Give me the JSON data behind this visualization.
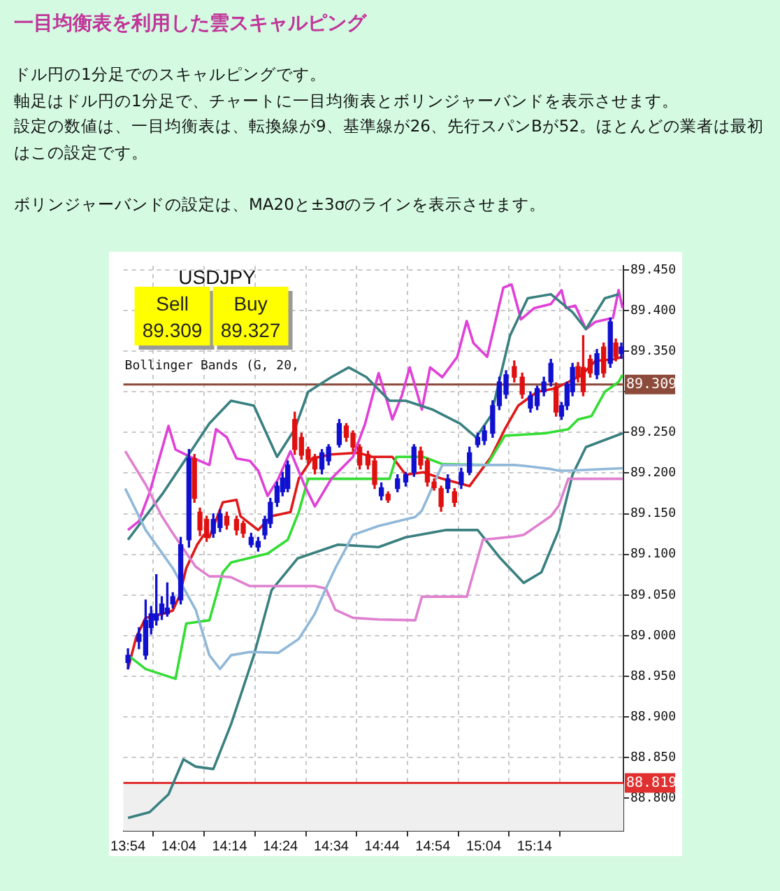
{
  "chart_data": {
    "type": "candlestick",
    "title": "一目均衡表を利用した雲スキャルピング",
    "subtitle": "ドル円の1分足でのスキャルピングです。",
    "annotations": [
      "軸足はドル円の1分足で、チャートに一目均衡表とボリンジャーバンドを表示させます。",
      "設定の数値は、一目均衡表は、転換線が9、基準線が26、先行スパンBが52。ほとんどの業者は最初はこの設定です。",
      "ボリンジャーバンドの設定は、MA20と±3σのラインを表示させます。",
      "USDJPY",
      "Sell",
      "89.309",
      "Buy",
      "89.327",
      "Bollinger Bands (G, 20,"
    ],
    "x": [
      13.9,
      13.936,
      13.958,
      13.976,
      13.993,
      14.011,
      14.029,
      14.047,
      14.073,
      14.1,
      14.118,
      14.136,
      14.158,
      14.18,
      14.202,
      14.224,
      14.256,
      14.278,
      14.304,
      14.327,
      14.349,
      14.367,
      14.389,
      14.407,
      14.424,
      14.447,
      14.469,
      14.491,
      14.513,
      14.536,
      14.558,
      14.593,
      14.616,
      14.638,
      14.66,
      14.687,
      14.709,
      14.731,
      14.753,
      14.784,
      14.811,
      14.838,
      14.86,
      14.882,
      14.904,
      14.927,
      14.949,
      14.971,
      14.993,
      15.02,
      15.047,
      15.069,
      15.096,
      15.118,
      15.14,
      15.167,
      15.193,
      15.22,
      15.242,
      15.264,
      15.287,
      15.304,
      15.322,
      15.34,
      15.358,
      15.376,
      15.393,
      15.416,
      15.438,
      15.46,
      15.482,
      15.5,
      15.518
    ],
    "ohlc": [
      [
        88.967,
        88.984,
        88.959,
        88.976
      ],
      [
        88.993,
        89.01,
        88.984,
        89.002
      ],
      [
        88.976,
        89.044,
        88.971,
        89.019
      ],
      [
        89.01,
        89.036,
        89.002,
        89.027
      ],
      [
        89.019,
        89.075,
        89.013,
        89.027
      ],
      [
        89.027,
        89.048,
        89.02,
        89.039
      ],
      [
        89.027,
        89.065,
        89.024,
        89.034
      ],
      [
        89.039,
        89.053,
        89.034,
        89.048
      ],
      [
        89.044,
        89.121,
        89.039,
        89.112
      ],
      [
        89.118,
        89.229,
        89.109,
        89.218
      ],
      [
        89.218,
        89.223,
        89.164,
        89.169
      ],
      [
        89.152,
        89.157,
        89.123,
        89.13
      ],
      [
        89.143,
        89.147,
        89.116,
        89.121
      ],
      [
        89.126,
        89.15,
        89.121,
        89.143
      ],
      [
        89.133,
        89.155,
        89.128,
        89.15
      ],
      [
        89.147,
        89.152,
        89.131,
        89.136
      ],
      [
        89.143,
        89.147,
        89.124,
        89.13
      ],
      [
        89.138,
        89.141,
        89.121,
        89.126
      ],
      [
        89.112,
        89.126,
        89.109,
        89.121
      ],
      [
        89.109,
        89.121,
        89.104,
        89.116
      ],
      [
        89.124,
        89.147,
        89.119,
        89.143
      ],
      [
        89.138,
        89.169,
        89.133,
        89.164
      ],
      [
        89.164,
        89.189,
        89.159,
        89.184
      ],
      [
        89.177,
        89.201,
        89.172,
        89.194
      ],
      [
        89.181,
        89.215,
        89.177,
        89.21
      ],
      [
        89.266,
        89.275,
        89.223,
        89.229
      ],
      [
        89.244,
        89.249,
        89.217,
        89.222
      ],
      [
        89.229,
        89.232,
        89.211,
        89.217
      ],
      [
        89.22,
        89.223,
        89.199,
        89.205
      ],
      [
        89.205,
        89.229,
        89.199,
        89.225
      ],
      [
        89.215,
        89.235,
        89.21,
        89.232
      ],
      [
        89.235,
        89.266,
        89.232,
        89.261
      ],
      [
        89.258,
        89.261,
        89.239,
        89.244
      ],
      [
        89.249,
        89.252,
        89.227,
        89.232
      ],
      [
        89.232,
        89.235,
        89.205,
        89.21
      ],
      [
        89.223,
        89.227,
        89.205,
        89.21
      ],
      [
        89.215,
        89.218,
        89.181,
        89.186
      ],
      [
        89.172,
        89.188,
        89.167,
        89.182
      ],
      [
        89.174,
        89.177,
        89.164,
        89.167
      ],
      [
        89.181,
        89.198,
        89.177,
        89.193
      ],
      [
        89.189,
        89.201,
        89.184,
        89.198
      ],
      [
        89.201,
        89.235,
        89.196,
        89.232
      ],
      [
        89.227,
        89.232,
        89.205,
        89.21
      ],
      [
        89.215,
        89.218,
        89.184,
        89.189
      ],
      [
        89.189,
        89.193,
        89.179,
        89.182
      ],
      [
        89.181,
        89.184,
        89.153,
        89.159
      ],
      [
        89.181,
        89.198,
        89.176,
        89.193
      ],
      [
        89.177,
        89.181,
        89.159,
        89.164
      ],
      [
        89.186,
        89.206,
        89.181,
        89.201
      ],
      [
        89.201,
        89.232,
        89.198,
        89.225
      ],
      [
        89.235,
        89.249,
        89.232,
        89.244
      ],
      [
        89.24,
        89.258,
        89.235,
        89.252
      ],
      [
        89.249,
        89.289,
        89.244,
        89.283
      ],
      [
        89.283,
        89.318,
        89.278,
        89.312
      ],
      [
        89.297,
        89.326,
        89.292,
        89.321
      ],
      [
        89.331,
        89.338,
        89.312,
        89.318
      ],
      [
        89.318,
        89.323,
        89.292,
        89.297
      ],
      [
        89.28,
        89.3,
        89.275,
        89.295
      ],
      [
        89.283,
        89.307,
        89.278,
        89.304
      ],
      [
        89.3,
        89.318,
        89.295,
        89.312
      ],
      [
        89.312,
        89.34,
        89.307,
        89.335
      ],
      [
        89.306,
        89.311,
        89.27,
        89.275
      ],
      [
        89.27,
        89.287,
        89.266,
        89.283
      ],
      [
        89.283,
        89.312,
        89.278,
        89.309
      ],
      [
        89.3,
        89.335,
        89.295,
        89.33
      ],
      [
        89.331,
        89.336,
        89.312,
        89.318
      ],
      [
        89.33,
        89.369,
        89.295,
        89.3
      ],
      [
        89.34,
        89.345,
        89.318,
        89.323
      ],
      [
        89.321,
        89.352,
        89.316,
        89.347
      ],
      [
        89.355,
        89.36,
        89.318,
        89.323
      ],
      [
        89.335,
        89.391,
        89.33,
        89.386
      ],
      [
        89.36,
        89.365,
        89.338,
        89.343
      ],
      [
        89.347,
        89.36,
        89.341,
        89.355
      ]
    ],
    "colors": [
      "#1010d0",
      "#1010d0",
      "#1010d0",
      "#1010d0",
      "#1010d0",
      "#1010d0",
      "#1010d0",
      "#1010d0",
      "#1010d0",
      "#1010d0",
      "#e01010",
      "#e01010",
      "#e01010",
      "#1010d0",
      "#1010d0",
      "#e01010",
      "#e01010",
      "#e01010",
      "#1010d0",
      "#1010d0",
      "#1010d0",
      "#1010d0",
      "#1010d0",
      "#1010d0",
      "#1010d0",
      "#e01010",
      "#e01010",
      "#e01010",
      "#e01010",
      "#1010d0",
      "#1010d0",
      "#1010d0",
      "#e01010",
      "#e01010",
      "#e01010",
      "#e01010",
      "#e01010",
      "#1010d0",
      "#e01010",
      "#1010d0",
      "#1010d0",
      "#1010d0",
      "#e01010",
      "#e01010",
      "#e01010",
      "#e01010",
      "#1010d0",
      "#e01010",
      "#1010d0",
      "#1010d0",
      "#1010d0",
      "#1010d0",
      "#1010d0",
      "#1010d0",
      "#1010d0",
      "#e01010",
      "#e01010",
      "#1010d0",
      "#1010d0",
      "#1010d0",
      "#1010d0",
      "#e01010",
      "#1010d0",
      "#1010d0",
      "#1010d0",
      "#e01010",
      "#e01010",
      "#e01010",
      "#1010d0",
      "#e01010",
      "#1010d0",
      "#e01010",
      "#1010d0"
    ],
    "series": [
      {
        "type": "line",
        "color": "#90b8d8",
        "x": [
          13.891,
          13.958,
          14.011,
          14.047,
          14.122,
          14.167,
          14.202,
          14.238,
          14.3,
          14.393,
          14.46,
          14.513,
          14.549,
          14.58,
          14.638,
          14.722,
          14.842,
          14.864,
          14.931,
          15.011,
          15.064,
          15.167,
          15.198,
          15.287,
          15.313,
          15.344,
          15.522
        ],
        "values": [
          89.181,
          89.13,
          89.102,
          89.083,
          89.032,
          88.976,
          88.959,
          88.976,
          88.98,
          88.979,
          88.996,
          89.027,
          89.058,
          89.083,
          89.124,
          89.135,
          89.146,
          89.154,
          89.21,
          89.21,
          89.21,
          89.21,
          89.209,
          89.205,
          89.203,
          89.203,
          89.206
        ]
      },
      {
        "type": "line",
        "color": "#e080d0",
        "x": [
          13.891,
          13.958,
          14.011,
          14.047,
          14.122,
          14.167,
          14.202,
          14.238,
          14.3,
          14.393,
          14.46,
          14.513,
          14.549,
          14.58,
          14.638,
          14.722,
          14.842,
          14.864,
          14.931,
          15.011,
          15.064,
          15.167,
          15.198,
          15.287,
          15.313,
          15.344,
          15.522
        ],
        "values": [
          89.227,
          89.186,
          89.147,
          89.126,
          89.085,
          89.073,
          89.073,
          89.072,
          89.061,
          89.061,
          89.061,
          89.061,
          89.058,
          89.032,
          89.022,
          89.02,
          89.019,
          89.048,
          89.048,
          89.048,
          89.118,
          89.122,
          89.124,
          89.147,
          89.16,
          89.193,
          89.193
        ]
      },
      {
        "type": "line",
        "color": "#3a8080",
        "x": [
          13.9,
          14.016,
          14.167,
          14.238,
          14.313,
          14.389,
          14.447,
          14.491,
          14.567,
          14.624,
          14.682,
          14.758,
          14.811,
          14.9,
          14.989,
          15.042,
          15.091,
          15.153,
          15.211,
          15.287,
          15.358,
          15.402,
          15.464,
          15.509
        ],
        "values": [
          89.118,
          89.176,
          89.261,
          89.289,
          89.283,
          89.22,
          89.254,
          89.3,
          89.318,
          89.33,
          89.318,
          89.289,
          89.289,
          89.278,
          89.261,
          89.244,
          89.271,
          89.369,
          89.415,
          89.42,
          89.398,
          89.377,
          89.415,
          89.42
        ]
      },
      {
        "type": "line",
        "color": "#3a8080",
        "x": [
          13.9,
          13.971,
          14.033,
          14.082,
          14.122,
          14.18,
          14.238,
          14.313,
          14.371,
          14.456,
          14.589,
          14.722,
          14.811,
          14.944,
          15.047,
          15.122,
          15.198,
          15.256,
          15.313,
          15.358,
          15.402,
          15.522
        ],
        "values": [
          88.776,
          88.783,
          88.805,
          88.848,
          88.839,
          88.836,
          88.891,
          88.976,
          89.056,
          89.095,
          89.112,
          89.109,
          89.121,
          89.13,
          89.13,
          89.095,
          89.065,
          89.078,
          89.13,
          89.198,
          89.232,
          89.249
        ]
      },
      {
        "type": "line",
        "color": "#e040d8",
        "x": [
          13.9,
          13.936,
          13.971,
          14.033,
          14.056,
          14.104,
          14.167,
          14.189,
          14.224,
          14.256,
          14.3,
          14.327,
          14.358,
          14.393,
          14.433,
          14.478,
          14.513,
          14.567,
          14.638,
          14.678,
          14.722,
          14.758,
          14.767,
          14.798,
          14.824,
          14.864,
          14.891,
          14.931,
          14.98,
          15.011,
          15.033,
          15.078,
          15.131,
          15.158,
          15.189,
          15.233,
          15.287,
          15.322,
          15.336,
          15.367,
          15.402,
          15.433,
          15.491,
          15.509,
          15.522
        ],
        "values": [
          89.13,
          89.141,
          89.176,
          89.258,
          89.229,
          89.22,
          89.21,
          89.254,
          89.244,
          89.218,
          89.215,
          89.203,
          89.172,
          89.193,
          89.227,
          89.186,
          89.159,
          89.193,
          89.22,
          89.261,
          89.323,
          89.278,
          89.266,
          89.295,
          89.33,
          89.278,
          89.33,
          89.318,
          89.343,
          89.387,
          89.36,
          89.343,
          89.428,
          89.432,
          89.389,
          89.403,
          89.408,
          89.425,
          89.403,
          89.406,
          89.377,
          89.386,
          89.391,
          89.425,
          89.403
        ]
      },
      {
        "type": "line",
        "color": "#33dd33",
        "x": [
          13.9,
          13.958,
          14.056,
          14.091,
          14.167,
          14.211,
          14.238,
          14.358,
          14.424,
          14.46,
          14.491,
          14.758,
          14.78,
          14.869,
          14.931,
          15.078,
          15.136,
          15.269,
          15.344,
          15.376,
          15.42,
          15.464,
          15.509,
          15.522
        ],
        "values": [
          88.976,
          88.959,
          88.947,
          89.015,
          89.019,
          89.078,
          89.09,
          89.101,
          89.118,
          89.152,
          89.193,
          89.193,
          89.22,
          89.22,
          89.211,
          89.21,
          89.246,
          89.249,
          89.254,
          89.266,
          89.27,
          89.3,
          89.312,
          89.321
        ]
      },
      {
        "type": "line",
        "color": "#e01818",
        "x": [
          13.9,
          13.927,
          13.958,
          14.016,
          14.047,
          14.069,
          14.091,
          14.127,
          14.149,
          14.167,
          14.211,
          14.256,
          14.269,
          14.327,
          14.371,
          14.433,
          14.46,
          14.504,
          14.567,
          14.656,
          14.7,
          14.767,
          14.811,
          14.869,
          14.931,
          15.02,
          15.091,
          15.136,
          15.18,
          15.242,
          15.3,
          15.344,
          15.389,
          15.433,
          15.491,
          15.522
        ],
        "values": [
          88.959,
          88.998,
          89.022,
          89.027,
          89.031,
          89.049,
          89.083,
          89.112,
          89.124,
          89.121,
          89.164,
          89.167,
          89.147,
          89.13,
          89.147,
          89.152,
          89.193,
          89.218,
          89.223,
          89.225,
          89.22,
          89.22,
          89.198,
          89.201,
          89.193,
          89.184,
          89.22,
          89.254,
          89.283,
          89.3,
          89.304,
          89.312,
          89.321,
          89.338,
          89.34,
          89.343
        ]
      }
    ],
    "xlim": [
      13.885,
      15.525
    ],
    "xticks": [
      {
        "value": 13.9,
        "label": "13:54"
      },
      {
        "value": 14.0667,
        "label": "14:04"
      },
      {
        "value": 14.2333,
        "label": "14:14"
      },
      {
        "value": 14.4,
        "label": "14:24"
      },
      {
        "value": 14.5667,
        "label": "14:34"
      },
      {
        "value": 14.7333,
        "label": "14:44"
      },
      {
        "value": 14.9,
        "label": "14:54"
      },
      {
        "value": 15.0667,
        "label": "15:04"
      },
      {
        "value": 15.2333,
        "label": "15:14"
      }
    ],
    "ylim": [
      88.76,
      89.455
    ],
    "yticks": [
      {
        "value": 88.8,
        "label": "88.800"
      },
      {
        "value": 88.85,
        "label": "88.850"
      },
      {
        "value": 88.9,
        "label": "88.900"
      },
      {
        "value": 88.95,
        "label": "88.950"
      },
      {
        "value": 89,
        "label": "89.000"
      },
      {
        "value": 89.05,
        "label": "89.050"
      },
      {
        "value": 89.1,
        "label": "89.100"
      },
      {
        "value": 89.15,
        "label": "89.150"
      },
      {
        "value": 89.2,
        "label": "89.200"
      },
      {
        "value": 89.25,
        "label": "89.250"
      },
      {
        "value": 89.3,
        "label": null
      },
      {
        "value": 89.35,
        "label": "89.350"
      },
      {
        "value": 89.4,
        "label": "89.400"
      },
      {
        "value": 89.45,
        "label": "89.450"
      }
    ],
    "ref_lines": [
      {
        "axis": "y",
        "value": 89.309,
        "label": "89.309",
        "color": "#8b4a3a"
      },
      {
        "axis": "y",
        "value": 88.819,
        "label": "88.819",
        "color": "#e03030"
      }
    ],
    "bands": [
      {
        "axis": "y",
        "from": 88.76,
        "to": 88.819,
        "color": "#efefef"
      }
    ],
    "grid": true,
    "legend": false
  }
}
